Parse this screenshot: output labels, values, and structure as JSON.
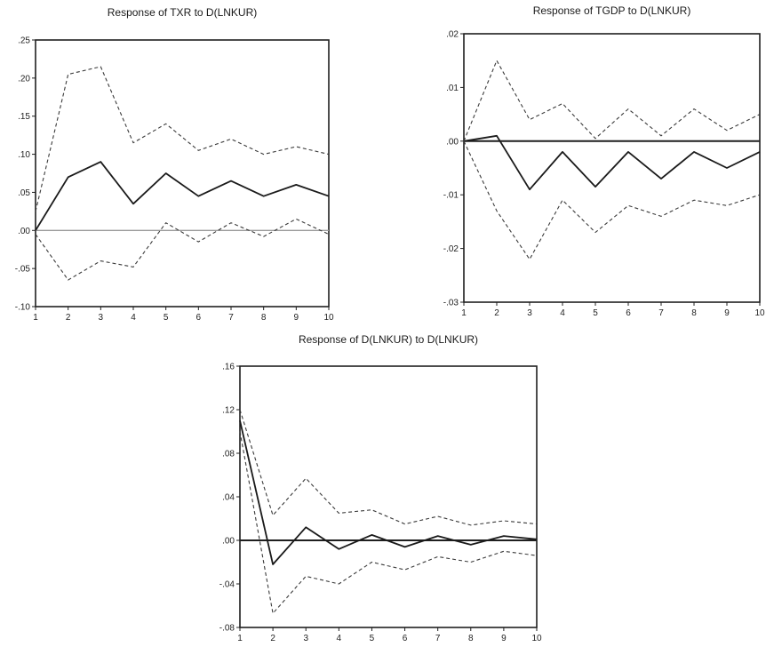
{
  "chart_data": [
    {
      "type": "line",
      "title": "Response of TXR to D(LNKUR)",
      "x": [
        1,
        2,
        3,
        4,
        5,
        6,
        7,
        8,
        9,
        10
      ],
      "xticks": [
        "1",
        "2",
        "3",
        "4",
        "5",
        "6",
        "7",
        "8",
        "9",
        "10"
      ],
      "ylim": [
        -0.1,
        0.25
      ],
      "yticks": [
        ".25",
        ".20",
        ".15",
        ".10",
        ".05",
        ".00",
        "-.05",
        "-.10"
      ],
      "ytick_values": [
        0.25,
        0.2,
        0.15,
        0.1,
        0.05,
        0.0,
        -0.05,
        -0.1
      ],
      "zero_line": true,
      "zero_color": "#9a9a9a",
      "series": [
        {
          "style": "solid",
          "values": [
            0.0,
            0.07,
            0.09,
            0.035,
            0.075,
            0.045,
            0.065,
            0.045,
            0.06,
            0.045
          ]
        },
        {
          "style": "dashed",
          "values": [
            0.025,
            0.205,
            0.215,
            0.115,
            0.14,
            0.105,
            0.12,
            0.1,
            0.11,
            0.1
          ]
        },
        {
          "style": "dashed",
          "values": [
            -0.005,
            -0.065,
            -0.04,
            -0.048,
            0.01,
            -0.015,
            0.01,
            -0.008,
            0.015,
            -0.005
          ]
        }
      ]
    },
    {
      "type": "line",
      "title": "Response of TGDP to D(LNKUR)",
      "x": [
        1,
        2,
        3,
        4,
        5,
        6,
        7,
        8,
        9,
        10
      ],
      "xticks": [
        "1",
        "2",
        "3",
        "4",
        "5",
        "6",
        "7",
        "8",
        "9",
        "10"
      ],
      "ylim": [
        -0.03,
        0.02
      ],
      "yticks": [
        ".02",
        ".01",
        ".00",
        "-.01",
        "-.02",
        "-.03"
      ],
      "ytick_values": [
        0.02,
        0.01,
        0.0,
        -0.01,
        -0.02,
        -0.03
      ],
      "zero_line": true,
      "zero_color": "#1f1f1f",
      "series": [
        {
          "style": "solid",
          "values": [
            0.0,
            0.001,
            -0.009,
            -0.002,
            -0.0085,
            -0.002,
            -0.007,
            -0.002,
            -0.005,
            -0.002
          ]
        },
        {
          "style": "dashed",
          "values": [
            0.0,
            0.015,
            0.004,
            0.007,
            0.0005,
            0.006,
            0.001,
            0.006,
            0.002,
            0.005
          ]
        },
        {
          "style": "dashed",
          "values": [
            0.0,
            -0.013,
            -0.022,
            -0.011,
            -0.017,
            -0.012,
            -0.014,
            -0.011,
            -0.012,
            -0.01
          ]
        }
      ]
    },
    {
      "type": "line",
      "title": "Response of D(LNKUR) to D(LNKUR)",
      "x": [
        1,
        2,
        3,
        4,
        5,
        6,
        7,
        8,
        9,
        10
      ],
      "xticks": [
        "1",
        "2",
        "3",
        "4",
        "5",
        "6",
        "7",
        "8",
        "9",
        "10"
      ],
      "ylim": [
        -0.08,
        0.16
      ],
      "yticks": [
        ".16",
        ".12",
        ".08",
        ".04",
        ".00",
        "-.04",
        "-.08"
      ],
      "ytick_values": [
        0.16,
        0.12,
        0.08,
        0.04,
        0.0,
        -0.04,
        -0.08
      ],
      "zero_line": true,
      "zero_color": "#1f1f1f",
      "series": [
        {
          "style": "solid",
          "values": [
            0.11,
            -0.022,
            0.012,
            -0.008,
            0.005,
            -0.006,
            0.004,
            -0.004,
            0.004,
            0.001
          ]
        },
        {
          "style": "dashed",
          "values": [
            0.12,
            0.023,
            0.057,
            0.025,
            0.028,
            0.015,
            0.022,
            0.014,
            0.018,
            0.015
          ]
        },
        {
          "style": "dashed",
          "values": [
            0.1,
            -0.067,
            -0.033,
            -0.04,
            -0.02,
            -0.027,
            -0.015,
            -0.02,
            -0.01,
            -0.014
          ]
        }
      ]
    }
  ]
}
